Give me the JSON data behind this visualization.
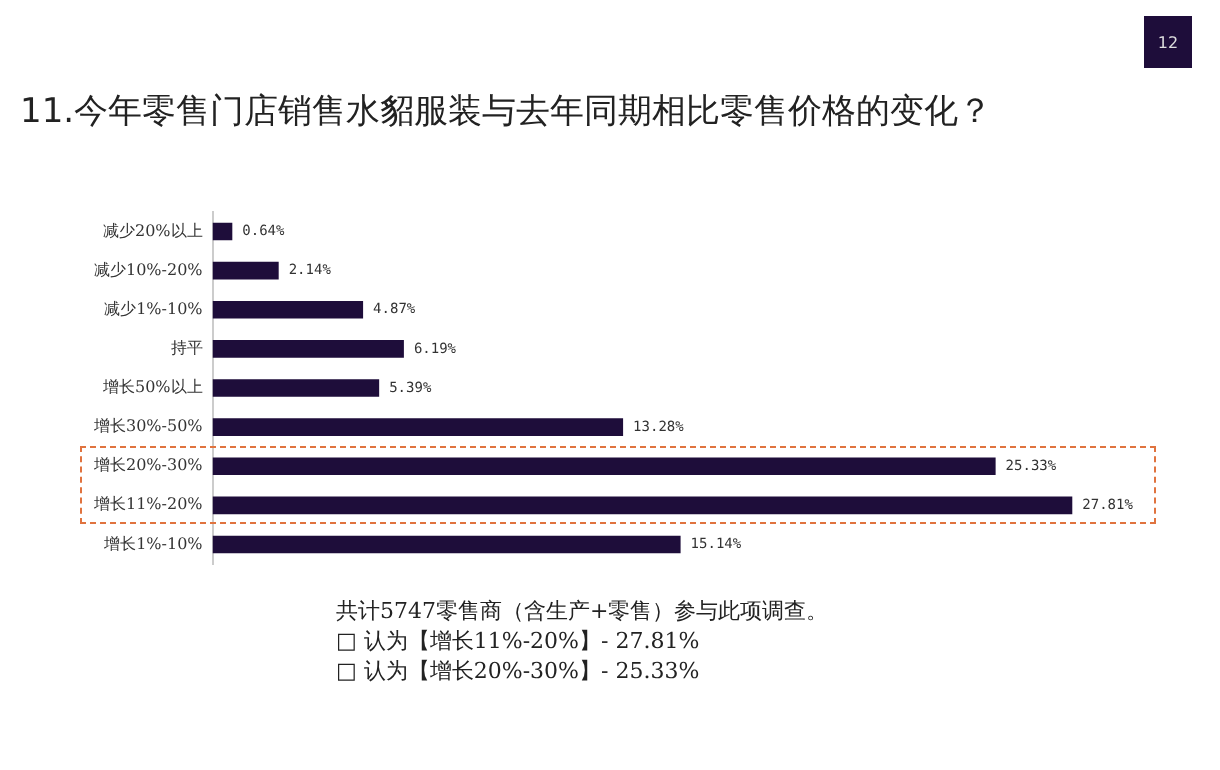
{
  "chart_data": {
    "type": "bar",
    "orientation": "horizontal",
    "title": "11.今年零售门店销售水貂服装与去年同期相比零售价格的变化？",
    "categories": [
      "减少20%以上",
      "减少10%-20%",
      "减少1%-10%",
      "持平",
      "增长50%以上",
      "增长30%-50%",
      "增长20%-30%",
      "增长11%-20%",
      "增长1%-10%"
    ],
    "values": [
      0.64,
      2.14,
      4.87,
      6.19,
      5.39,
      13.28,
      25.33,
      27.81,
      15.14
    ],
    "value_labels": [
      "0.64%",
      "2.14%",
      "4.87%",
      "6.19%",
      "5.39%",
      "13.28%",
      "25.33%",
      "27.81%",
      "15.14%"
    ],
    "color": "#1e0d3a",
    "grid": false,
    "legend": false,
    "annotations": [
      "12",
      "共计5747零售商（含生产+零售）参与此项调查。",
      "□ 认为【增长11%-20%】- 27.81%",
      "□ 认为【增长20%-30%】- 25.33%"
    ]
  }
}
